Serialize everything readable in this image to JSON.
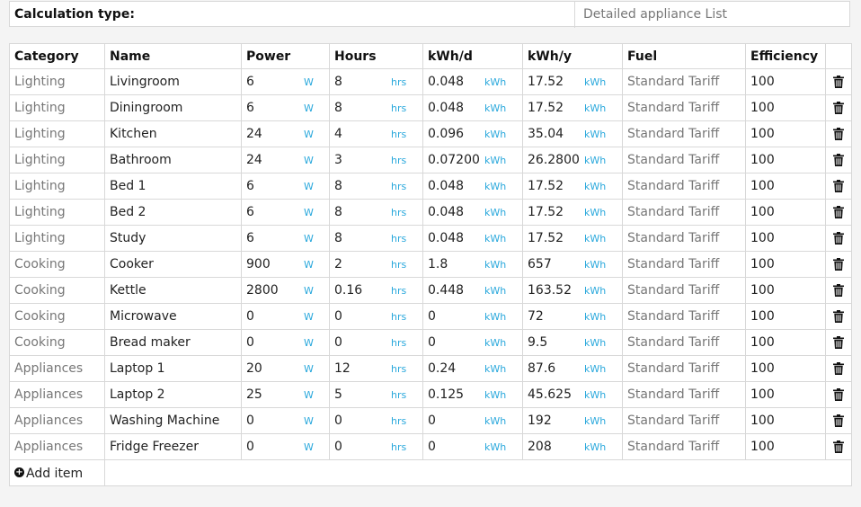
{
  "calc": {
    "label": "Calculation type:",
    "value": "Detailed appliance List"
  },
  "headers": [
    "Category",
    "Name",
    "Power",
    "Hours",
    "kWh/d",
    "kWh/y",
    "Fuel",
    "Efficiency"
  ],
  "units": {
    "power": "W",
    "hours": "hrs",
    "kwh": "kWh"
  },
  "rows": [
    {
      "category": "Lighting",
      "name": "Livingroom",
      "power": "6",
      "hours": "8",
      "kwhd": "0.048",
      "kwhy": "17.52",
      "fuel": "Standard Tariff",
      "efficiency": "100"
    },
    {
      "category": "Lighting",
      "name": "Diningroom",
      "power": "6",
      "hours": "8",
      "kwhd": "0.048",
      "kwhy": "17.52",
      "fuel": "Standard Tariff",
      "efficiency": "100"
    },
    {
      "category": "Lighting",
      "name": "Kitchen",
      "power": "24",
      "hours": "4",
      "kwhd": "0.096",
      "kwhy": "35.04",
      "fuel": "Standard Tariff",
      "efficiency": "100"
    },
    {
      "category": "Lighting",
      "name": "Bathroom",
      "power": "24",
      "hours": "3",
      "kwhd": "0.072000",
      "kwhy": "26.28000",
      "fuel": "Standard Tariff",
      "efficiency": "100"
    },
    {
      "category": "Lighting",
      "name": "Bed 1",
      "power": "6",
      "hours": "8",
      "kwhd": "0.048",
      "kwhy": "17.52",
      "fuel": "Standard Tariff",
      "efficiency": "100"
    },
    {
      "category": "Lighting",
      "name": "Bed 2",
      "power": "6",
      "hours": "8",
      "kwhd": "0.048",
      "kwhy": "17.52",
      "fuel": "Standard Tariff",
      "efficiency": "100"
    },
    {
      "category": "Lighting",
      "name": "Study",
      "power": "6",
      "hours": "8",
      "kwhd": "0.048",
      "kwhy": "17.52",
      "fuel": "Standard Tariff",
      "efficiency": "100"
    },
    {
      "category": "Cooking",
      "name": "Cooker",
      "power": "900",
      "hours": "2",
      "kwhd": "1.8",
      "kwhy": "657",
      "fuel": "Standard Tariff",
      "efficiency": "100"
    },
    {
      "category": "Cooking",
      "name": "Kettle",
      "power": "2800",
      "hours": "0.16",
      "kwhd": "0.448",
      "kwhy": "163.52",
      "fuel": "Standard Tariff",
      "efficiency": "100"
    },
    {
      "category": "Cooking",
      "name": "Microwave",
      "power": "0",
      "hours": "0",
      "kwhd": "0",
      "kwhy": "72",
      "fuel": "Standard Tariff",
      "efficiency": "100"
    },
    {
      "category": "Cooking",
      "name": "Bread maker",
      "power": "0",
      "hours": "0",
      "kwhd": "0",
      "kwhy": "9.5",
      "fuel": "Standard Tariff",
      "efficiency": "100"
    },
    {
      "category": "Appliances",
      "name": "Laptop 1",
      "power": "20",
      "hours": "12",
      "kwhd": "0.24",
      "kwhy": "87.6",
      "fuel": "Standard Tariff",
      "efficiency": "100"
    },
    {
      "category": "Appliances",
      "name": "Laptop 2",
      "power": "25",
      "hours": "5",
      "kwhd": "0.125",
      "kwhy": "45.625",
      "fuel": "Standard Tariff",
      "efficiency": "100"
    },
    {
      "category": "Appliances",
      "name": "Washing Machine",
      "power": "0",
      "hours": "0",
      "kwhd": "0",
      "kwhy": "192",
      "fuel": "Standard Tariff",
      "efficiency": "100"
    },
    {
      "category": "Appliances",
      "name": "Fridge Freezer",
      "power": "0",
      "hours": "0",
      "kwhd": "0",
      "kwhy": "208",
      "fuel": "Standard Tariff",
      "efficiency": "100"
    }
  ],
  "add_item": {
    "label": "Add item",
    "icon": "plus-circle-icon"
  },
  "delete_icon": "trash-icon",
  "colors": {
    "unit": "#29a8dc",
    "muted": "#777777",
    "border": "#d8d8d8"
  }
}
